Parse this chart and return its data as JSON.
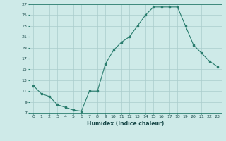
{
  "x": [
    0,
    1,
    2,
    3,
    4,
    5,
    6,
    7,
    8,
    9,
    10,
    11,
    12,
    13,
    14,
    15,
    16,
    17,
    18,
    19,
    20,
    21,
    22,
    23
  ],
  "y": [
    12,
    10.5,
    10,
    8.5,
    8,
    7.5,
    7.3,
    11,
    11,
    16,
    18.5,
    20,
    21,
    23,
    25,
    26.5,
    26.5,
    26.5,
    26.5,
    23,
    19.5,
    18,
    16.5,
    15.5
  ],
  "xlabel": "Humidex (Indice chaleur)",
  "ylim": [
    7,
    27
  ],
  "xlim": [
    -0.5,
    23.5
  ],
  "yticks": [
    7,
    9,
    11,
    13,
    15,
    17,
    19,
    21,
    23,
    25,
    27
  ],
  "xticks": [
    0,
    1,
    2,
    3,
    4,
    5,
    6,
    7,
    8,
    9,
    10,
    11,
    12,
    13,
    14,
    15,
    16,
    17,
    18,
    19,
    20,
    21,
    22,
    23
  ],
  "line_color": "#2a7d6e",
  "marker_color": "#2a7d6e",
  "bg_color": "#ceeae8",
  "grid_color": "#aacccc"
}
